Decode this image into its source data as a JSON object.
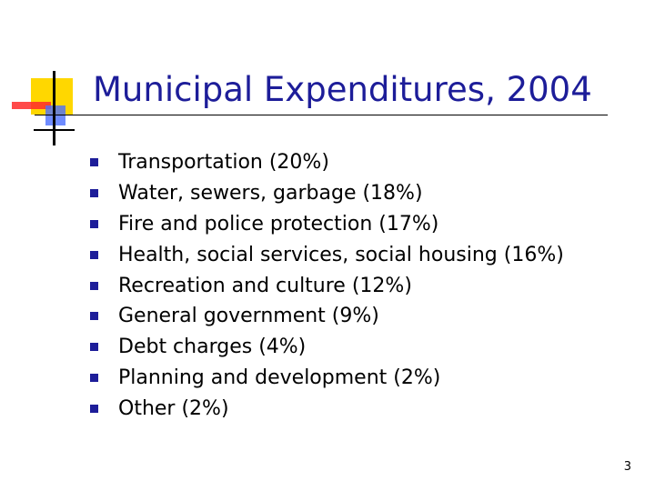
{
  "slide": {
    "title": "Municipal Expenditures, 2004",
    "page_number": "3",
    "accent_color": "#1d1d99",
    "logo": {
      "icon": "slide-corner-logo-icon",
      "colors": [
        "#ffd700",
        "#ff2a2a",
        "#4b6fff",
        "#000000"
      ]
    },
    "items": [
      {
        "label": "Transportation (20%)"
      },
      {
        "label": "Water, sewers, garbage (18%)"
      },
      {
        "label": "Fire and police protection (17%)"
      },
      {
        "label": "Health, social services, social housing (16%)"
      },
      {
        "label": "Recreation and culture (12%)"
      },
      {
        "label": "General government (9%)"
      },
      {
        "label": "Debt charges (4%)"
      },
      {
        "label": "Planning and development (2%)"
      },
      {
        "label": "Other (2%)"
      }
    ]
  }
}
